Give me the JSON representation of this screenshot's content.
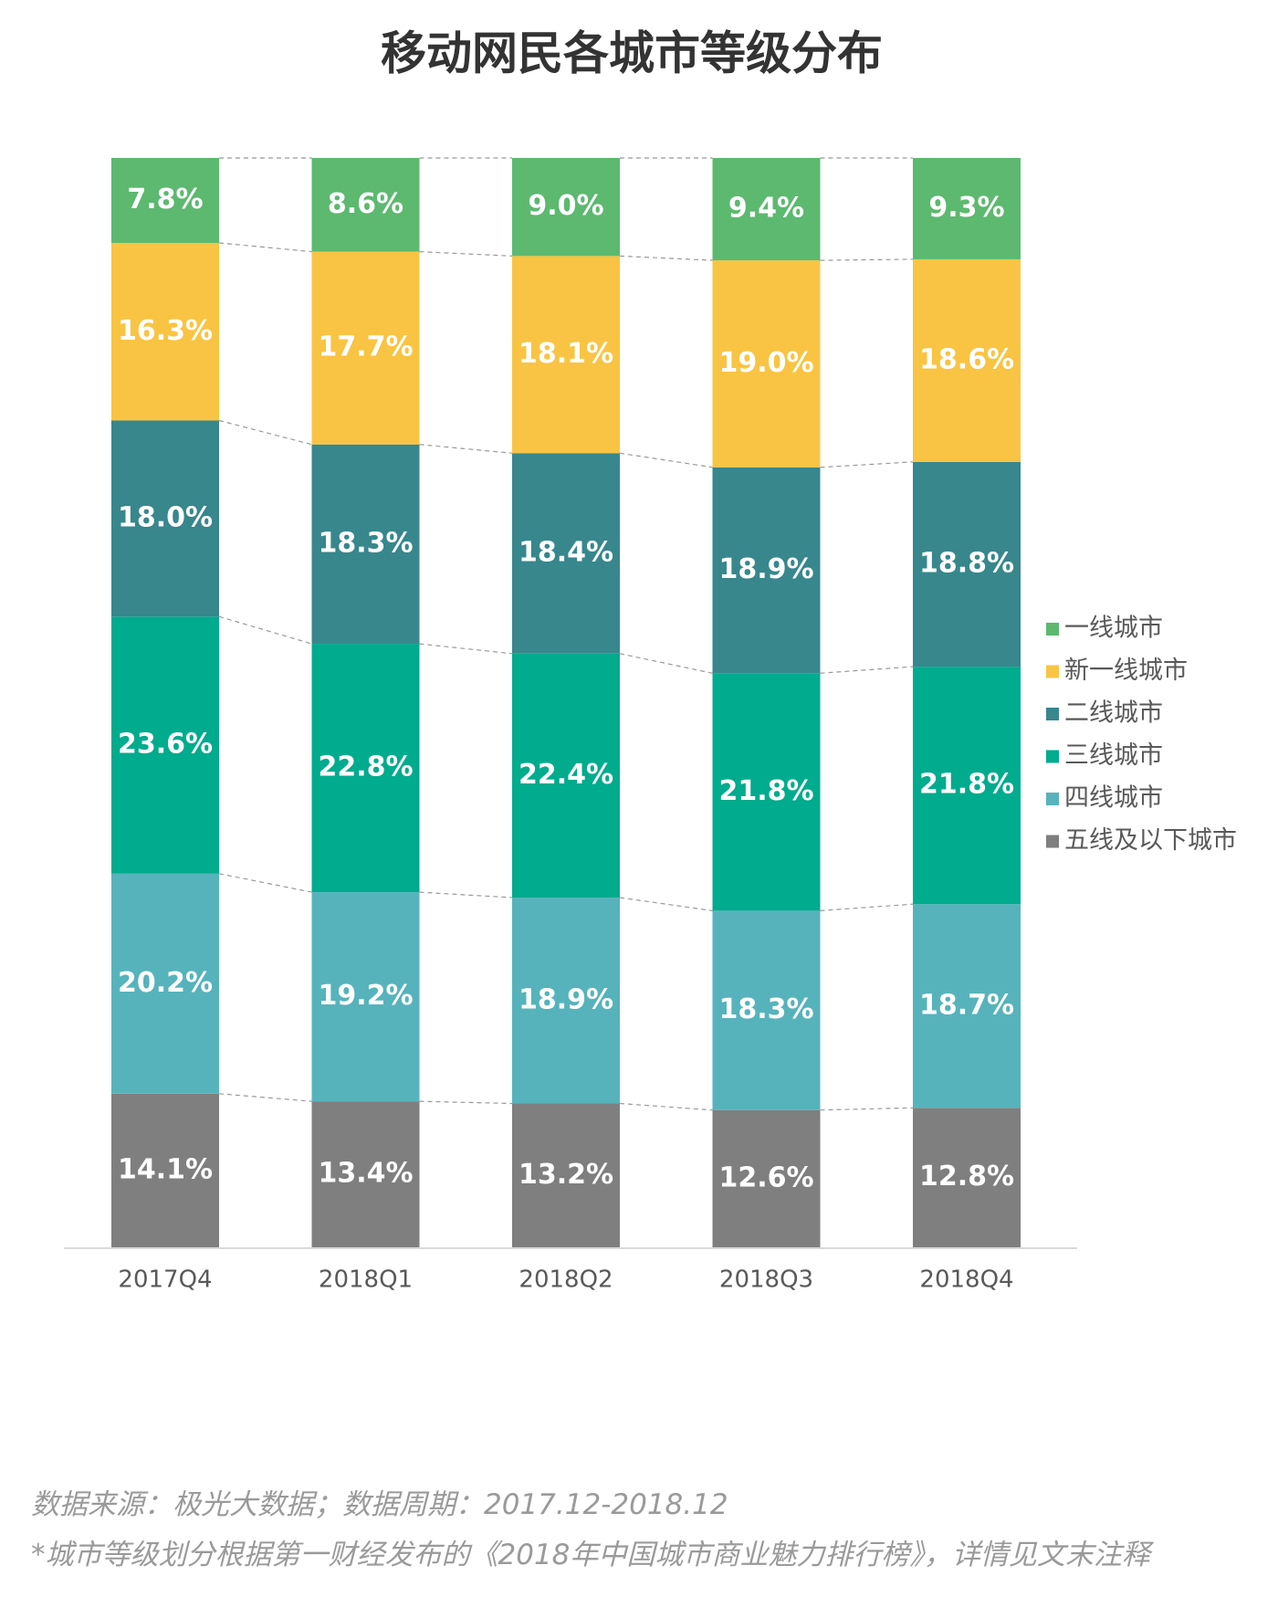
{
  "chart_data": {
    "type": "stacked-bar",
    "title": "移动网民各城市等级分布",
    "categories": [
      "2017Q4",
      "2018Q1",
      "2018Q2",
      "2018Q3",
      "2018Q4"
    ],
    "series": [
      {
        "name": "一线城市",
        "color": "#5cb96f",
        "values": [
          7.8,
          8.6,
          9.0,
          9.4,
          9.3
        ],
        "value_labels": [
          "7.8%",
          "8.6%",
          "9.0%",
          "9.4%",
          "9.3%"
        ]
      },
      {
        "name": "新一线城市",
        "color": "#f9c443",
        "values": [
          16.3,
          17.7,
          18.1,
          19.0,
          18.6
        ],
        "value_labels": [
          "16.3%",
          "17.7%",
          "18.1%",
          "19.0%",
          "18.6%"
        ]
      },
      {
        "name": "二线城市",
        "color": "#37878d",
        "values": [
          18.0,
          18.3,
          18.4,
          18.9,
          18.8
        ],
        "value_labels": [
          "18.0%",
          "18.3%",
          "18.4%",
          "18.9%",
          "18.8%"
        ]
      },
      {
        "name": "三线城市",
        "color": "#00ab8e",
        "values": [
          23.6,
          22.8,
          22.4,
          21.8,
          21.8
        ],
        "value_labels": [
          "23.6%",
          "22.8%",
          "22.4%",
          "21.8%",
          "21.8%"
        ]
      },
      {
        "name": "四线城市",
        "color": "#56b3bb",
        "values": [
          20.2,
          19.2,
          18.9,
          18.3,
          18.7
        ],
        "value_labels": [
          "20.2%",
          "19.2%",
          "18.9%",
          "18.3%",
          "18.7%"
        ]
      },
      {
        "name": "五线及以下城市",
        "color": "#7f7f7f",
        "values": [
          14.1,
          13.4,
          13.2,
          12.6,
          12.8
        ],
        "value_labels": [
          "14.1%",
          "13.4%",
          "13.2%",
          "12.6%",
          "12.8%"
        ]
      }
    ],
    "legend": "right"
  },
  "source": "数据来源：极光大数据；数据周期：2017.12-2018.12",
  "footnote": "*城市等级划分根据第一财经发布的《2018年中国城市商业魅力排行榜》，详情见文末注释"
}
